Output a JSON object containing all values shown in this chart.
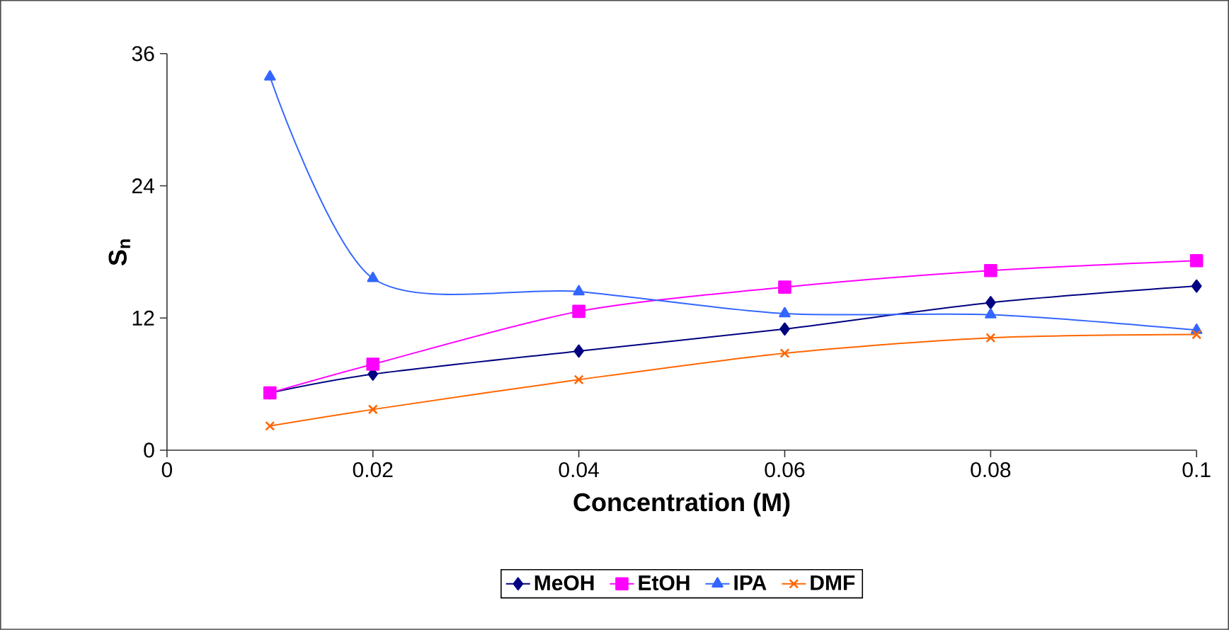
{
  "chart_data": {
    "type": "line",
    "xlabel": "Concentration (M)",
    "ylabel": "S$_{n}$",
    "x": [
      0.01,
      0.02,
      0.04,
      0.06,
      0.08,
      0.1
    ],
    "xlim": [
      0,
      0.1
    ],
    "xticks": [
      0,
      0.02,
      0.04,
      0.06,
      0.08,
      0.1
    ],
    "ylim": [
      0,
      36
    ],
    "yticks": [
      0,
      12,
      24,
      36
    ],
    "legend": "bottom",
    "series": [
      {
        "name": "MeOH",
        "color": "#000080",
        "marker": "diamond",
        "values": [
          5.2,
          6.9,
          9.0,
          11.0,
          13.4,
          14.9
        ]
      },
      {
        "name": "EtOH",
        "color": "#ff00ff",
        "marker": "square",
        "values": [
          5.2,
          7.8,
          12.6,
          14.8,
          16.3,
          17.2
        ]
      },
      {
        "name": "IPA",
        "color": "#3366ff",
        "marker": "triangle",
        "values": [
          33.9,
          15.6,
          14.4,
          12.4,
          12.3,
          10.9
        ]
      },
      {
        "name": "DMF",
        "color": "#ff6600",
        "marker": "cross",
        "values": [
          2.2,
          3.7,
          6.4,
          8.8,
          10.2,
          10.5
        ]
      }
    ]
  }
}
